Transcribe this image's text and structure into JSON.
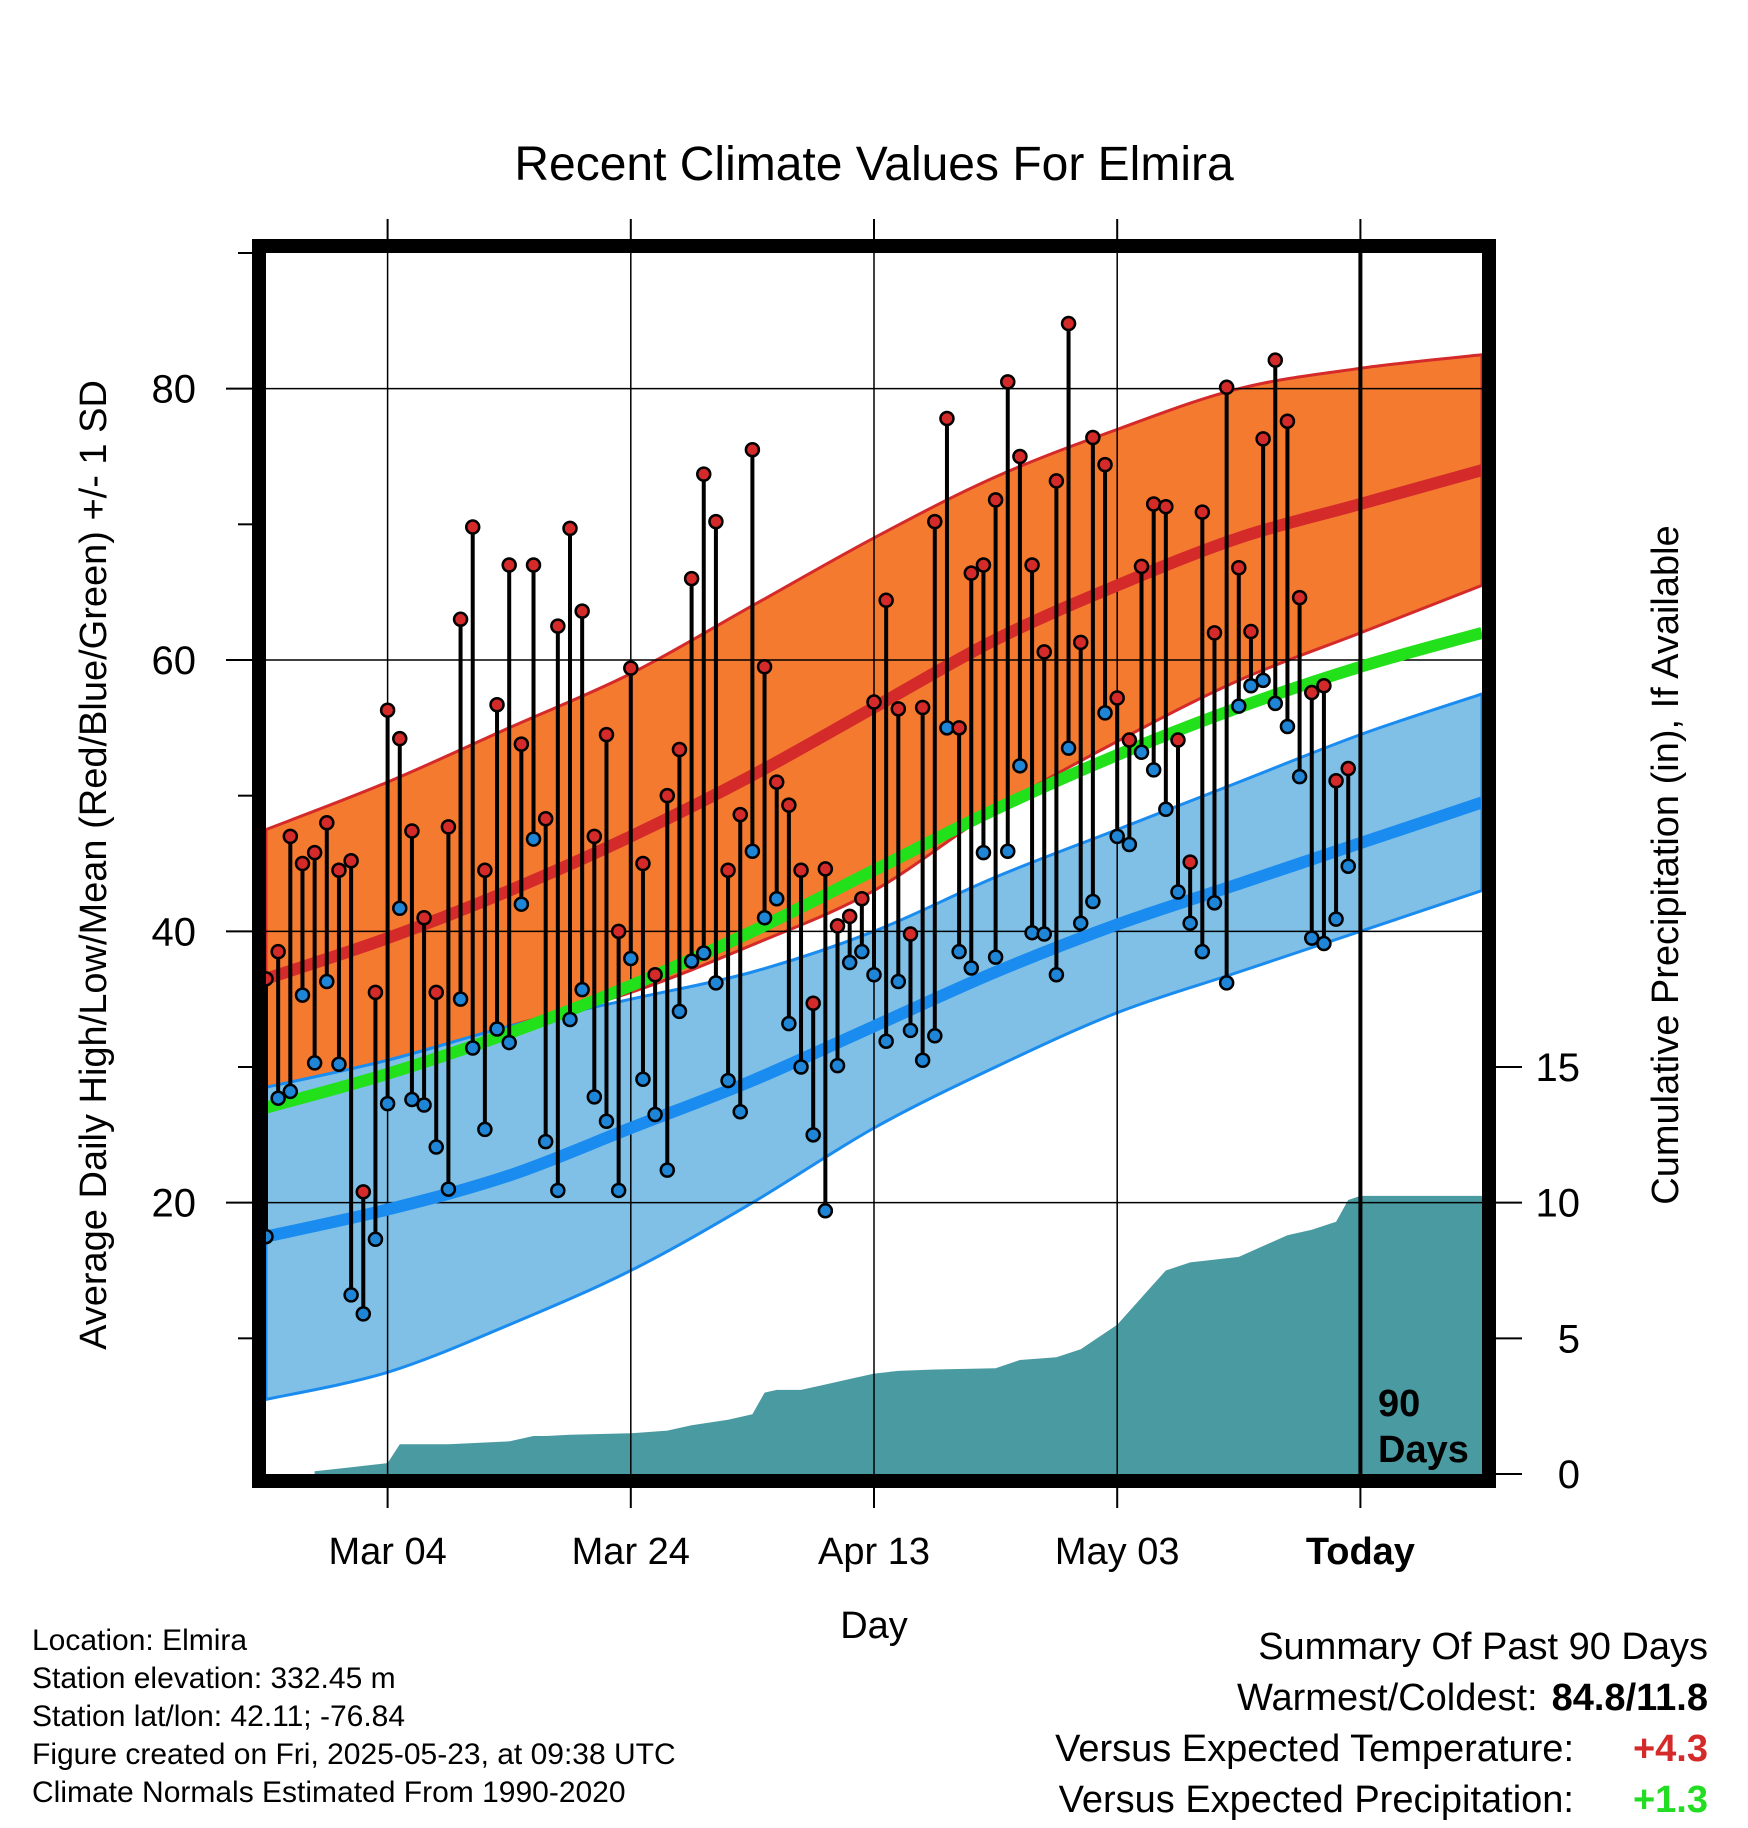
{
  "chart_data": {
    "type": "line",
    "title": "Recent Climate Values For Elmira",
    "xlabel": "Day",
    "ylabel": "Average Daily High/Low/Mean (Red/Blue/Green) +/- 1 SD",
    "y2label": "Cumulative Precipitation (in), If Available",
    "ylim": [
      0,
      90
    ],
    "y2lim": [
      0,
      45
    ],
    "x_tick_labels": [
      "Mar 04",
      "Mar 24",
      "Apr 13",
      "May 03",
      "Today"
    ],
    "x_tick_days": [
      10,
      30,
      50,
      70,
      90
    ],
    "y_ticks": [
      20,
      40,
      60,
      80
    ],
    "y2_ticks": [
      0,
      5,
      10,
      15
    ],
    "x_range_days": [
      0,
      100
    ],
    "period_label": [
      "90",
      "Days"
    ],
    "grid": true,
    "colors": {
      "high_band": "#f47a30",
      "high_mean": "#d42a2a",
      "low_band": "#80c0e6",
      "low_mean": "#1a8cf0",
      "avg_mean": "#22e01a",
      "precip": "#4a9aa2",
      "high_dot": "#d42a2a",
      "low_dot": "#1f85d6"
    },
    "normals": {
      "days": [
        0,
        10,
        20,
        30,
        40,
        50,
        60,
        70,
        80,
        90,
        100
      ],
      "high_mean": [
        36.5,
        39.5,
        43,
        47,
        51.5,
        56.5,
        61.5,
        65.5,
        69,
        71.5,
        74
      ],
      "high_upper": [
        47.5,
        51,
        55,
        59,
        64,
        69,
        73.5,
        77,
        80,
        81.5,
        82.5
      ],
      "high_lower": [
        28,
        30,
        33,
        35.5,
        39,
        43,
        49,
        54,
        58.5,
        62,
        65.5
      ],
      "low_mean": [
        17.5,
        19.5,
        22,
        25.5,
        29,
        33,
        37,
        40.5,
        43.5,
        46.5,
        49.5
      ],
      "low_upper": [
        28.5,
        30.5,
        33,
        35,
        37,
        40,
        44,
        47.5,
        51,
        54.5,
        57.5
      ],
      "low_lower": [
        5.5,
        7.5,
        11,
        15,
        20,
        25.5,
        30,
        34,
        37,
        40,
        43
      ],
      "avg_mean": [
        27,
        29.5,
        32.5,
        36,
        40,
        44.5,
        49,
        53,
        56.5,
        59.5,
        62
      ]
    },
    "daily": {
      "start_day": 0,
      "high": [
        36.5,
        38.5,
        47,
        45,
        45.8,
        48,
        44.5,
        45.2,
        20.8,
        35.5,
        56.3,
        54.2,
        47.4,
        41,
        35.5,
        47.7,
        63,
        69.8,
        44.5,
        56.7,
        67,
        53.8,
        67,
        48.3,
        62.5,
        69.7,
        63.6,
        47,
        54.5,
        40,
        59.4,
        45,
        36.8,
        50,
        53.4,
        66,
        73.7,
        70.2,
        44.5,
        48.6,
        75.5,
        59.5,
        51,
        49.3,
        44.5,
        34.7,
        44.6,
        40.4,
        41.1,
        42.4,
        56.9,
        64.4,
        56.4,
        39.8,
        56.5,
        70.2,
        77.8,
        55,
        66.4,
        67,
        71.8,
        80.5,
        75,
        67,
        60.6,
        73.2,
        84.8,
        61.3,
        76.4,
        74.4,
        57.2,
        54.1,
        66.9,
        71.5,
        71.3,
        54.1,
        45.1,
        70.9,
        62,
        80.1,
        66.8,
        62.1,
        76.3,
        82.1,
        77.6,
        64.6,
        57.6,
        58.1,
        51.1,
        52
      ],
      "low": [
        17.5,
        27.7,
        28.2,
        35.3,
        30.3,
        36.3,
        30.2,
        13.2,
        11.8,
        17.3,
        27.3,
        41.7,
        27.6,
        27.2,
        24.1,
        21,
        35,
        31.4,
        25.4,
        32.8,
        31.8,
        42,
        46.8,
        24.5,
        20.9,
        33.5,
        35.7,
        27.8,
        26,
        20.9,
        38,
        29.1,
        26.5,
        22.4,
        34.1,
        37.8,
        38.4,
        36.2,
        29,
        26.7,
        45.9,
        41,
        42.4,
        33.2,
        30,
        25,
        19.4,
        30.1,
        37.7,
        38.5,
        36.8,
        31.9,
        36.3,
        32.7,
        30.5,
        32.3,
        55,
        38.5,
        37.3,
        45.8,
        38.1,
        45.9,
        52.2,
        39.9,
        39.8,
        36.8,
        53.5,
        40.6,
        42.2,
        56.1,
        47,
        46.4,
        53.2,
        51.9,
        49,
        42.9,
        40.6,
        38.5,
        42.1,
        36.2,
        56.6,
        58.1,
        58.5,
        56.8,
        55.1,
        51.4,
        39.5,
        39.1,
        40.9,
        44.8
      ]
    },
    "precip": {
      "days": [
        4,
        6,
        8,
        10,
        11,
        15,
        20,
        22,
        23,
        25,
        30,
        33,
        35,
        38,
        40,
        41,
        42,
        44,
        46,
        48,
        50,
        52,
        55,
        60,
        62,
        65,
        67,
        70,
        72,
        74,
        76,
        78,
        80,
        84,
        86,
        88,
        89,
        90,
        100
      ],
      "cum": [
        0.1,
        0.2,
        0.3,
        0.4,
        1.1,
        1.1,
        1.2,
        1.4,
        1.4,
        1.45,
        1.5,
        1.6,
        1.8,
        2.0,
        2.2,
        3.0,
        3.1,
        3.1,
        3.3,
        3.5,
        3.7,
        3.8,
        3.85,
        3.9,
        4.2,
        4.3,
        4.6,
        5.5,
        6.5,
        7.5,
        7.8,
        7.9,
        8.0,
        8.8,
        9.0,
        9.3,
        10.1,
        10.25,
        10.25
      ]
    }
  },
  "info": {
    "location": "Location: Elmira",
    "elevation": "Station elevation: 332.45 m",
    "latlon": "Station lat/lon: 42.11; -76.84",
    "created": "Figure created on Fri, 2025-05-23, at 09:38 UTC",
    "normals": "Climate Normals Estimated From 1990-2020"
  },
  "summary": {
    "title": "Summary Of Past 90 Days",
    "warm_cold_label": "Warmest/Coldest:",
    "warm_cold_value": "84.8/11.8",
    "temp_label": "Versus Expected Temperature:",
    "temp_value": "+4.3",
    "temp_color": "#d42a2a",
    "precip_label": "Versus Expected Precipitation:",
    "precip_value": "+1.3",
    "precip_color": "#22dd22"
  }
}
